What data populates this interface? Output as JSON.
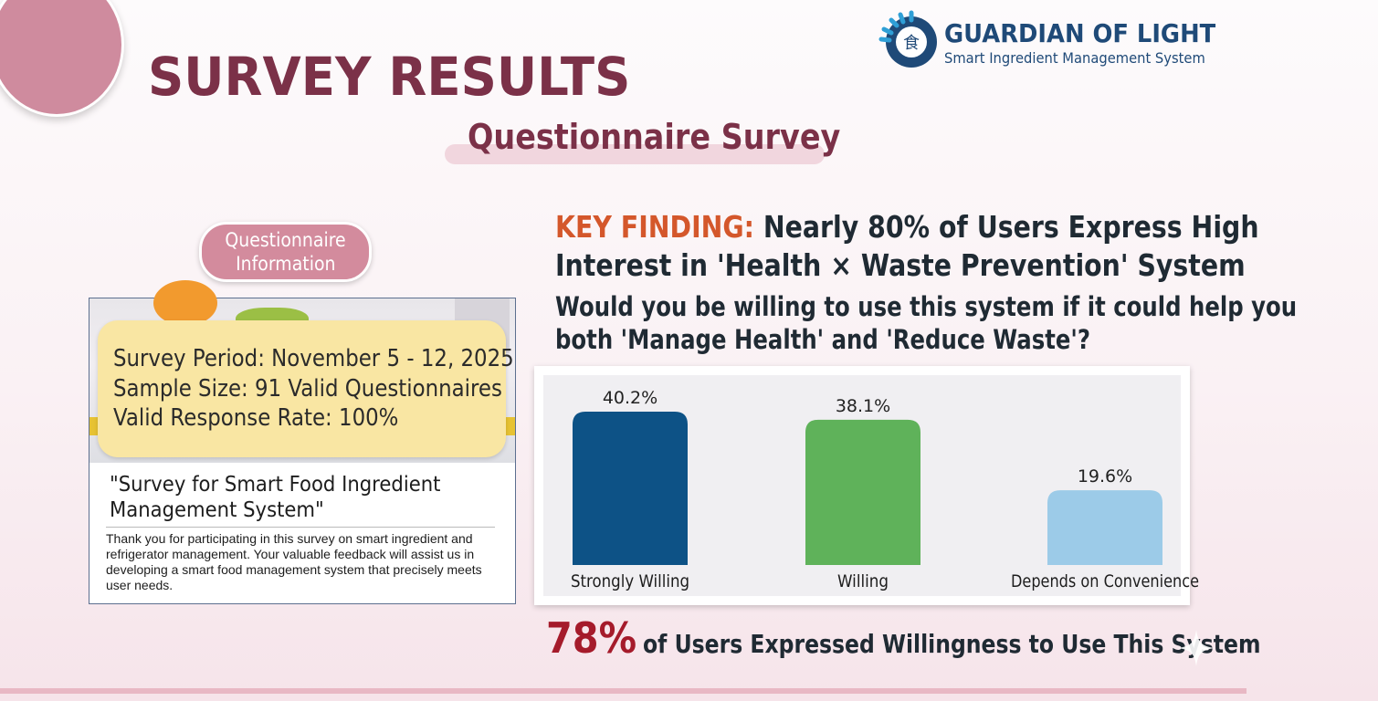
{
  "slide": {
    "title": "SURVEY RESULTS",
    "subtitle": "Questionnaire Survey"
  },
  "brand": {
    "name": "GUARDIAN OF LIGHT",
    "tagline": "Smart Ingredient Management System",
    "logo_glyph": "食",
    "primary_color": "#1f4a78",
    "accent_color": "#2f9fd6"
  },
  "questionnaire": {
    "badge_line1": "Questionnaire",
    "badge_line2": "Information",
    "period": "Survey Period: November 5 - 12, 2025",
    "sample": "Sample Size: 91 Valid Questionnaires",
    "response_rate": "Valid Response Rate: 100%",
    "form_title": "\"Survey for Smart Food Ingredient Management System\"",
    "form_intro": "Thank you for participating in this survey on smart ingredient and refrigerator management. Your valuable feedback will assist us in developing a smart food management system that precisely meets user needs."
  },
  "finding": {
    "key_label": "KEY FINDING:",
    "headline_part1": " Nearly 80% of Users Express High",
    "headline_part2": "Interest in 'Health × Waste Prevention' System",
    "question_line1": "Would you be willing to use this system if it could help you",
    "question_line2": "both 'Manage Health' and 'Reduce Waste'?"
  },
  "chart_data": {
    "type": "bar",
    "categories": [
      "Strongly Willing",
      "Willing",
      "Depends on Convenience"
    ],
    "values": [
      40.2,
      38.1,
      19.6
    ],
    "value_labels": [
      "40.2%",
      "38.1%",
      "19.6%"
    ],
    "colors": [
      "#0d5286",
      "#5fb25a",
      "#9ccbe8"
    ],
    "ylim": [
      0,
      45
    ],
    "grid": false,
    "title": "",
    "xlabel": "",
    "ylabel": ""
  },
  "conclusion": {
    "percent": "78%",
    "text": " of Users Expressed Willingness to Use This System"
  }
}
